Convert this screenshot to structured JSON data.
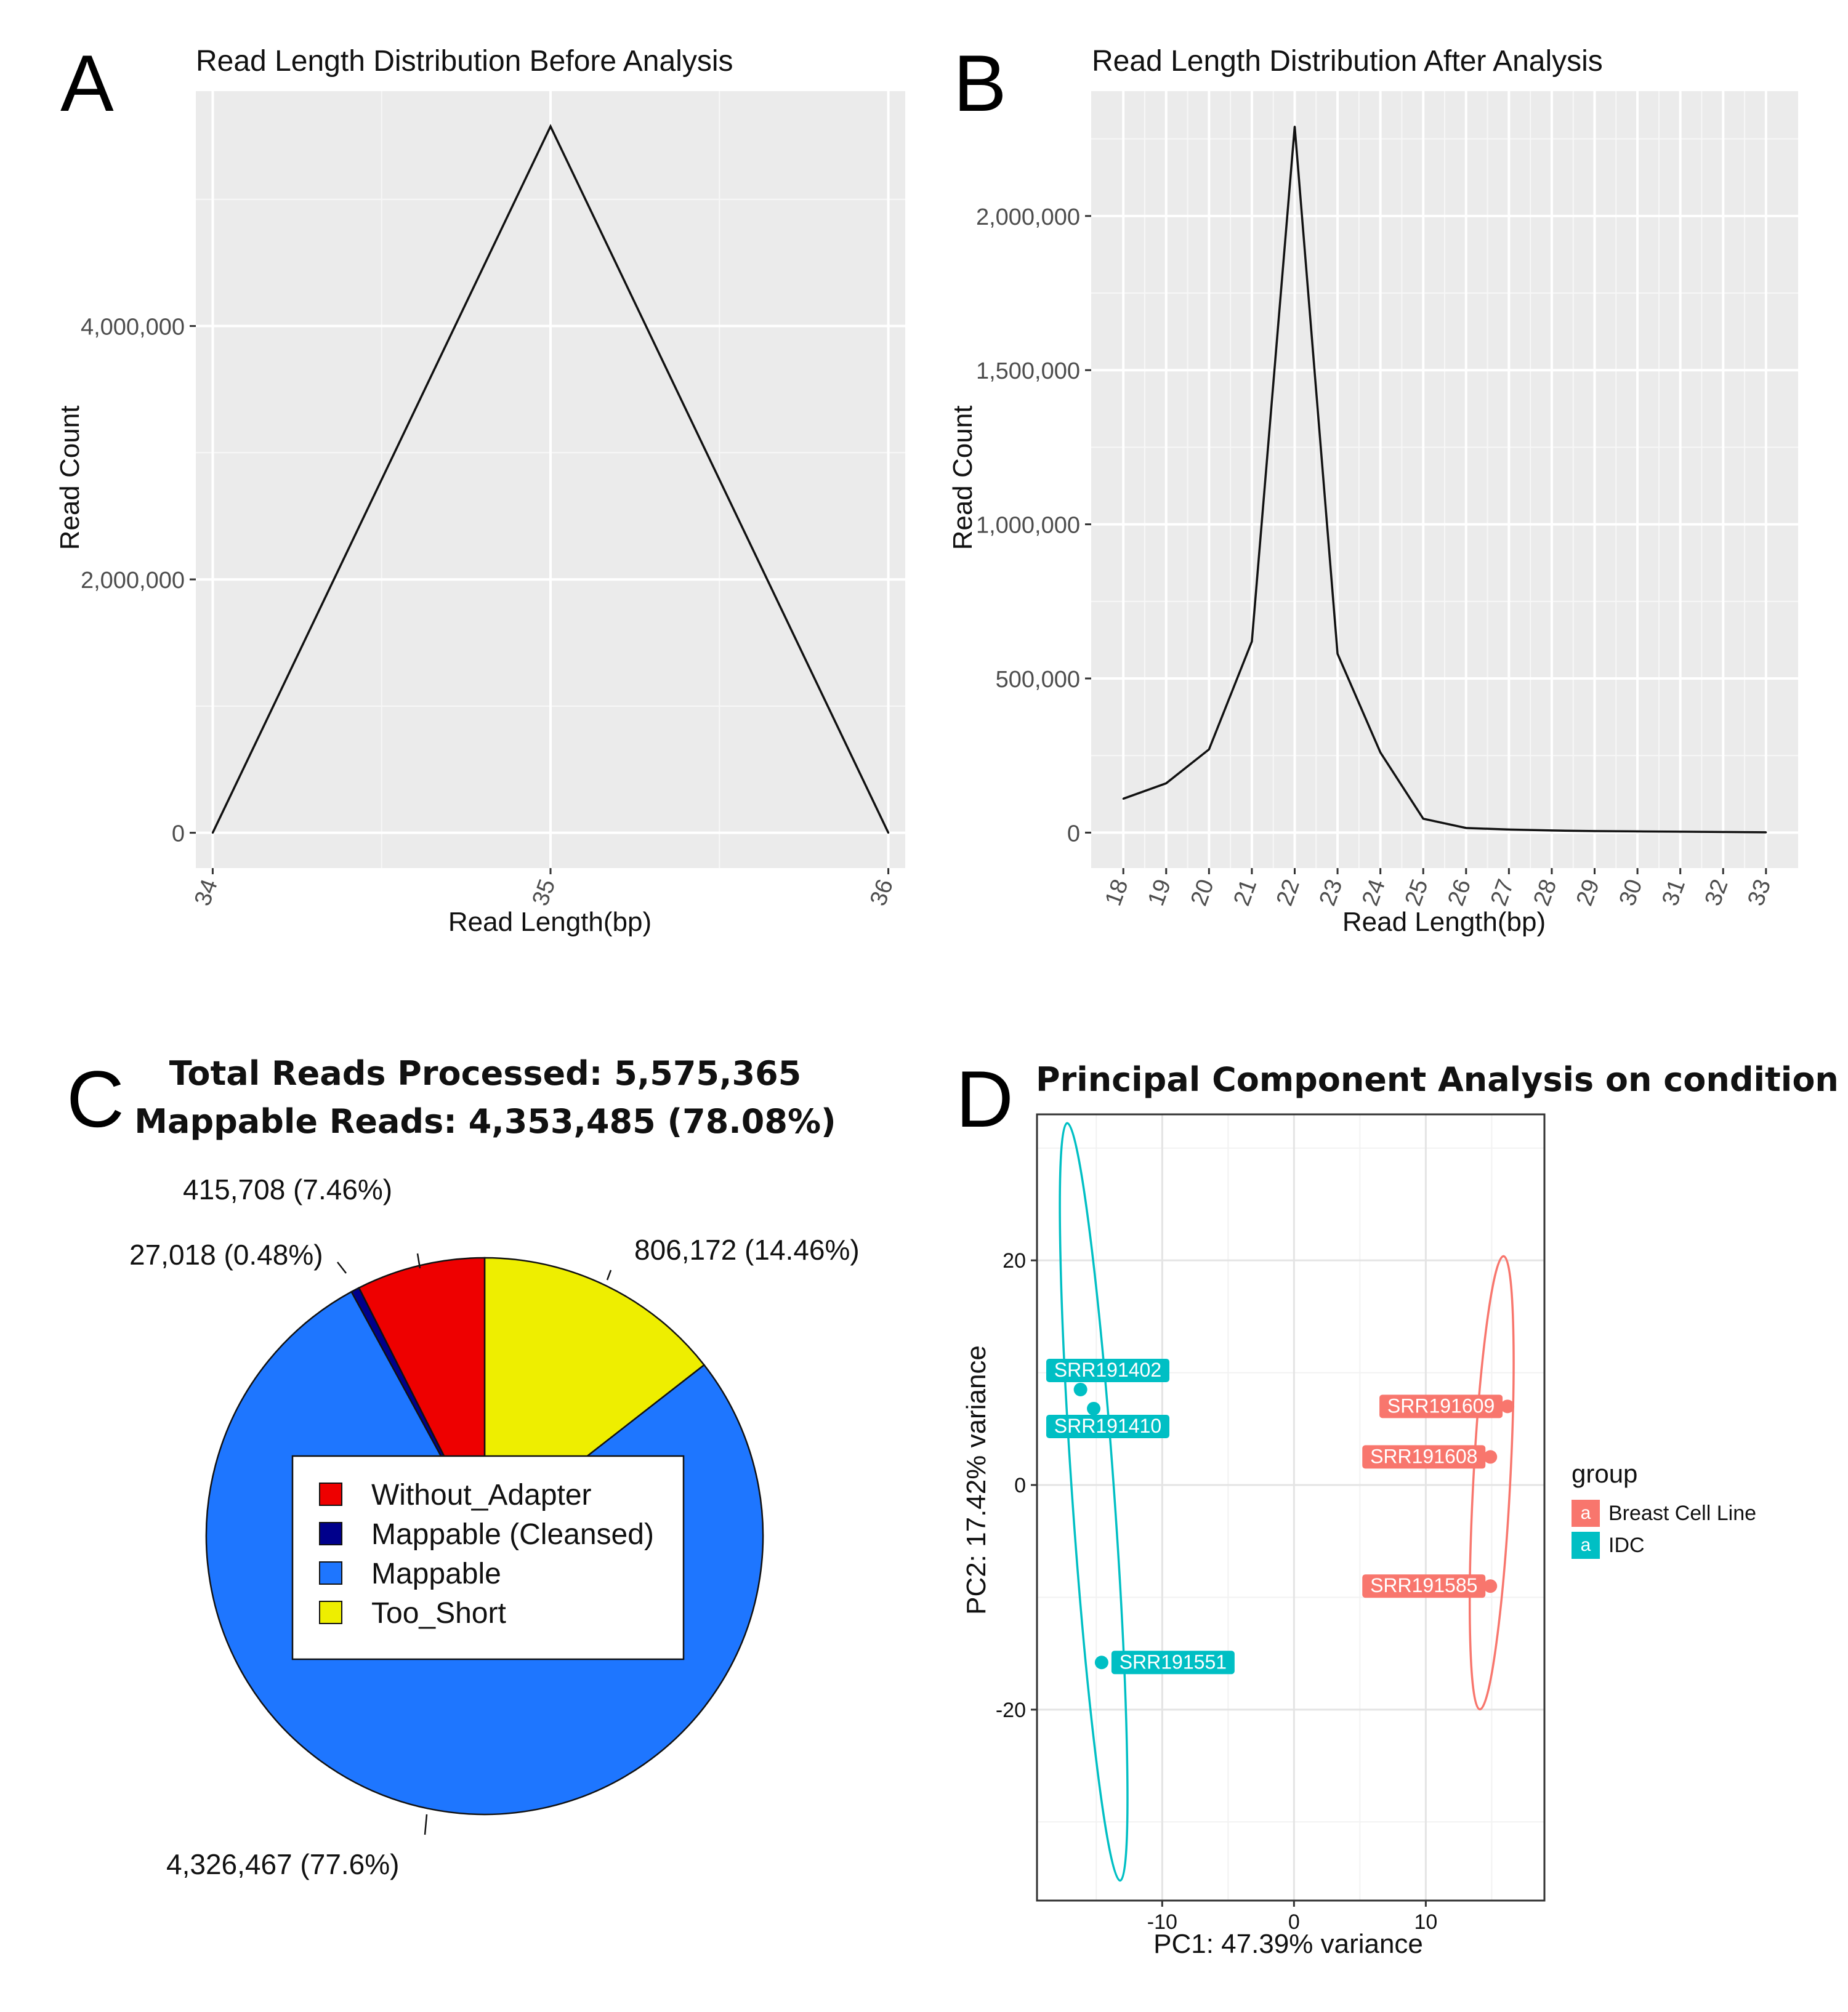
{
  "panels": {
    "a": {
      "letter": "A"
    },
    "b": {
      "letter": "B"
    },
    "c": {
      "letter": "C"
    },
    "d": {
      "letter": "D"
    }
  },
  "colors": {
    "panel_bg": "#ebebeb",
    "grid_major": "#ffffff",
    "line": "#111111",
    "red": "#ee0000",
    "navy": "#00008b",
    "blue": "#1e76ff",
    "yellow": "#eeee00",
    "teal": "#00bfc4",
    "salmon": "#f8766d"
  },
  "chart_data": [
    {
      "id": "A",
      "type": "line",
      "title": "Read Length Distribution Before Analysis",
      "xlabel": "Read Length(bp)",
      "ylabel": "Read Count",
      "x": [
        34,
        35,
        36
      ],
      "values": [
        0,
        5575365,
        0
      ],
      "xlim": [
        33.95,
        36.05
      ],
      "ylim": [
        -278768,
        5854133
      ],
      "yticks": [
        0,
        2000000,
        4000000
      ],
      "ytick_labels": [
        "0",
        "2,000,000",
        "4,000,000"
      ],
      "xticks": [
        34,
        35,
        36
      ],
      "xtick_labels": [
        "34",
        "35",
        "36"
      ],
      "grid": true
    },
    {
      "id": "B",
      "type": "line",
      "title": "Read Length Distribution After Analysis",
      "xlabel": "Read Length(bp)",
      "ylabel": "Read Count",
      "x": [
        18,
        19,
        20,
        21,
        22,
        23,
        24,
        25,
        26,
        27,
        28,
        29,
        30,
        31,
        32,
        33
      ],
      "values": [
        110000,
        160000,
        270000,
        620000,
        2290000,
        580000,
        260000,
        45000,
        15000,
        10000,
        7000,
        5000,
        4000,
        3000,
        2000,
        1000
      ],
      "xlim": [
        17.25,
        33.75
      ],
      "ylim": [
        -115000,
        2405000
      ],
      "yticks": [
        0,
        500000,
        1000000,
        1500000,
        2000000
      ],
      "ytick_labels": [
        "0",
        "500,000",
        "1,000,000",
        "1,500,000",
        "2,000,000"
      ],
      "xtick_labels": [
        "18",
        "19",
        "20",
        "21",
        "22",
        "23",
        "24",
        "25",
        "26",
        "27",
        "28",
        "29",
        "30",
        "31",
        "32",
        "33"
      ],
      "grid": true
    },
    {
      "id": "C",
      "type": "pie",
      "title": "Total Reads Processed: 5,575,365",
      "subtitle": "Mappable Reads: 4,353,485 (78.08%)",
      "slices": [
        {
          "name": "Too_Short",
          "value": 806172,
          "label": "806,172 (14.46%)"
        },
        {
          "name": "Mappable",
          "value": 4326467,
          "label": "4,326,467 (77.6%)"
        },
        {
          "name": "Mappable (Cleansed)",
          "value": 27018,
          "label": "27,018 (0.48%)"
        },
        {
          "name": "Without_Adapter",
          "value": 415708,
          "label": "415,708 (7.46%)"
        }
      ],
      "legend": [
        "Without_Adapter",
        "Mappable (Cleansed)",
        "Mappable",
        "Too_Short"
      ],
      "legend_placement": "center"
    },
    {
      "id": "D",
      "type": "scatter",
      "title": "Principal Component Analysis on condition",
      "xlabel": "PC1: 47.39% variance",
      "ylabel": "PC2: 17.42% variance",
      "xlim": [
        -19.5,
        19
      ],
      "ylim": [
        -37,
        33
      ],
      "xticks": [
        -10,
        0,
        10
      ],
      "xtick_labels": [
        "-10",
        "0",
        "10"
      ],
      "yticks": [
        -20,
        0,
        20
      ],
      "ytick_labels": [
        "-20",
        "0",
        "20"
      ],
      "legend_title": "group",
      "legend_key_glyph": "a",
      "legend_placement": "right",
      "series": [
        {
          "name": "Breast Cell Line",
          "points": [
            {
              "label": "SRR191609",
              "x": 16.2,
              "y": 7.0
            },
            {
              "label": "SRR191608",
              "x": 14.9,
              "y": 2.5
            },
            {
              "label": "SRR191585",
              "x": 14.9,
              "y": -9.0
            }
          ]
        },
        {
          "name": "IDC",
          "points": [
            {
              "label": "SRR191402",
              "x": -16.2,
              "y": 8.5
            },
            {
              "label": "SRR191410",
              "x": -15.2,
              "y": 6.8
            },
            {
              "label": "SRR191551",
              "x": -14.6,
              "y": -15.8
            }
          ]
        }
      ],
      "grid": true
    }
  ]
}
